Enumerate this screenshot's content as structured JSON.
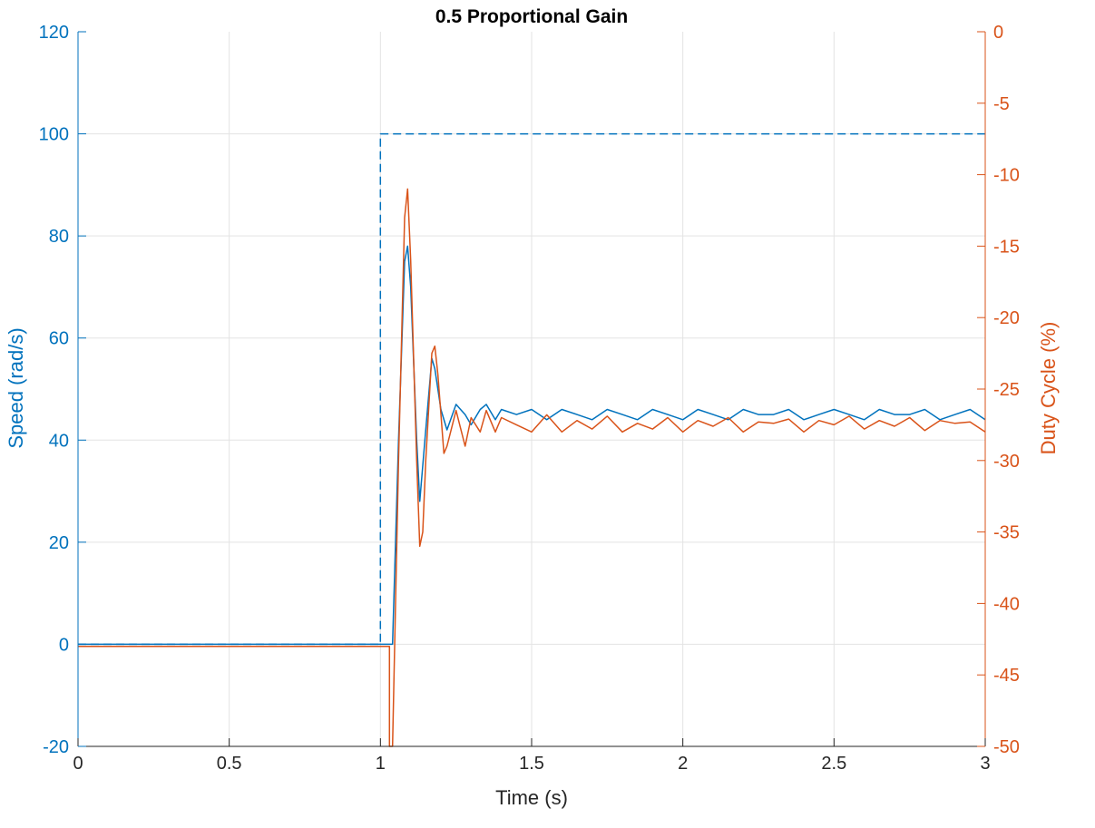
{
  "chart_data": {
    "type": "line",
    "title": "0.5 Proportional Gain",
    "xlabel": "Time (s)",
    "ylabel_left": "Speed (rad/s)",
    "ylabel_right": "Duty Cycle (%)",
    "xlim": [
      0,
      3
    ],
    "ylim_left": [
      -20,
      120
    ],
    "ylim_right": [
      -50,
      0
    ],
    "xticks": [
      "0",
      "0.5",
      "1",
      "1.5",
      "2",
      "2.5",
      "3"
    ],
    "yticks_left": [
      "-20",
      "0",
      "20",
      "40",
      "60",
      "80",
      "100",
      "120"
    ],
    "yticks_right": [
      "-50",
      "-45",
      "-40",
      "-35",
      "-30",
      "-25",
      "-20",
      "-15",
      "-10",
      "-5",
      "0"
    ],
    "grid": true,
    "colors": {
      "left": "#0072BD",
      "right": "#D95319",
      "axis": "#262626",
      "grid": "#e3e3e3"
    },
    "series": [
      {
        "axis": "left",
        "style": "dashed",
        "x": [
          0,
          1.0,
          1.0,
          1.02,
          3.0
        ],
        "y": [
          0,
          0,
          100,
          100,
          100
        ]
      },
      {
        "axis": "left",
        "style": "solid",
        "x": [
          0,
          1.04,
          1.06,
          1.08,
          1.09,
          1.1,
          1.12,
          1.13,
          1.15,
          1.17,
          1.18,
          1.2,
          1.22,
          1.25,
          1.28,
          1.3,
          1.33,
          1.35,
          1.38,
          1.4,
          1.45,
          1.5,
          1.55,
          1.6,
          1.65,
          1.7,
          1.75,
          1.8,
          1.85,
          1.9,
          1.95,
          2.0,
          2.05,
          2.1,
          2.15,
          2.2,
          2.25,
          2.3,
          2.35,
          2.4,
          2.45,
          2.5,
          2.55,
          2.6,
          2.65,
          2.7,
          2.75,
          2.8,
          2.85,
          2.9,
          2.95,
          3.0
        ],
        "y": [
          0,
          0,
          40,
          75,
          78,
          70,
          40,
          28,
          42,
          56,
          54,
          46,
          42,
          47,
          45,
          43,
          46,
          47,
          44,
          46,
          45,
          46,
          44,
          46,
          45,
          44,
          46,
          45,
          44,
          46,
          45,
          44,
          46,
          45,
          44,
          46,
          45,
          45,
          46,
          44,
          45,
          46,
          45,
          44,
          46,
          45,
          45,
          46,
          44,
          45,
          46,
          44
        ]
      },
      {
        "axis": "right",
        "style": "solid",
        "x": [
          0,
          1.03,
          1.03,
          1.04,
          1.06,
          1.08,
          1.09,
          1.1,
          1.12,
          1.13,
          1.14,
          1.15,
          1.17,
          1.18,
          1.19,
          1.21,
          1.22,
          1.25,
          1.28,
          1.3,
          1.33,
          1.35,
          1.38,
          1.4,
          1.45,
          1.5,
          1.55,
          1.6,
          1.65,
          1.7,
          1.75,
          1.8,
          1.85,
          1.9,
          1.95,
          2.0,
          2.05,
          2.1,
          2.15,
          2.2,
          2.25,
          2.3,
          2.35,
          2.4,
          2.45,
          2.5,
          2.55,
          2.6,
          2.65,
          2.7,
          2.75,
          2.8,
          2.85,
          2.9,
          2.95,
          3.0
        ],
        "y": [
          -43,
          -43,
          -50,
          -50,
          -30,
          -13,
          -11,
          -16,
          -30,
          -36,
          -35,
          -30,
          -22.5,
          -22,
          -24,
          -29.5,
          -29,
          -26.5,
          -29,
          -27,
          -28,
          -26.5,
          -28,
          -27,
          -27.5,
          -28,
          -26.8,
          -28,
          -27.2,
          -27.8,
          -26.9,
          -28,
          -27.4,
          -27.8,
          -27,
          -28,
          -27.2,
          -27.6,
          -27,
          -28,
          -27.3,
          -27.4,
          -27.1,
          -28,
          -27.2,
          -27.5,
          -26.9,
          -27.8,
          -27.2,
          -27.6,
          -27,
          -27.9,
          -27.2,
          -27.4,
          -27.3,
          -28
        ]
      }
    ]
  }
}
